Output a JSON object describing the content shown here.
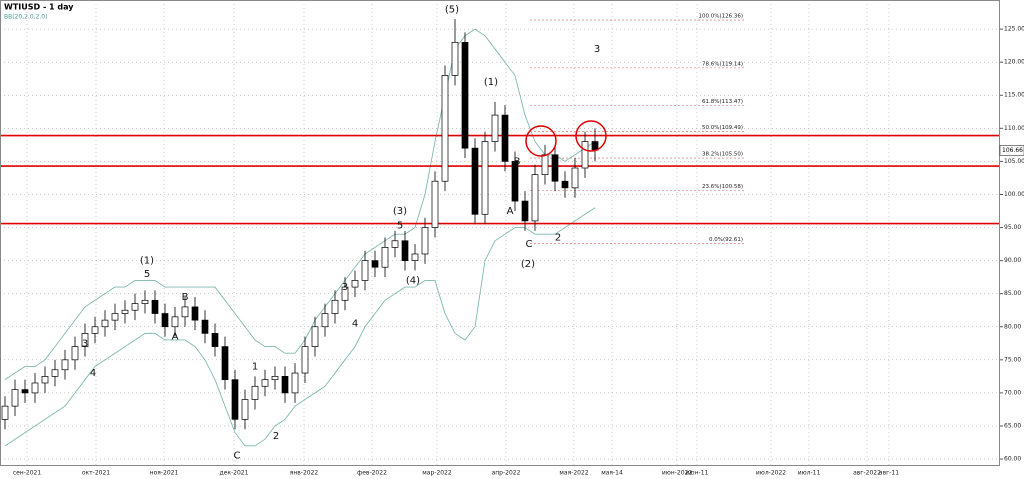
{
  "chart_data": {
    "type": "candlestick",
    "title": "WTIUSD - 1 day",
    "subtitle": "BB(20,2.0,2.0)",
    "open": [
      66,
      68,
      70.5,
      70,
      71.5,
      72.5,
      73.5,
      75,
      77,
      79,
      80,
      81,
      82,
      82.5,
      83.5,
      84,
      82,
      80,
      81.5,
      83,
      81,
      79,
      77,
      72,
      66,
      69,
      71,
      72,
      72.5,
      70,
      73,
      77,
      80,
      82,
      84,
      86,
      87,
      90,
      89,
      92,
      93,
      90,
      91,
      95,
      102,
      118,
      123,
      107,
      97,
      108,
      112,
      105,
      99,
      96,
      103,
      106,
      102,
      101,
      104,
      108
    ],
    "high": [
      69.5,
      72,
      72,
      73,
      74,
      75,
      76.5,
      78.5,
      80.5,
      81.5,
      82.5,
      83.5,
      84,
      85,
      85.5,
      85.5,
      83.5,
      83,
      84.5,
      84.5,
      82.5,
      80.5,
      78.5,
      73.5,
      70.5,
      72.5,
      73.5,
      74,
      74,
      74.5,
      78.5,
      81.5,
      83.5,
      85.5,
      87.5,
      88.5,
      91.5,
      91.5,
      93.5,
      94.5,
      94.5,
      92.5,
      96.5,
      103.5,
      119.5,
      126.5,
      124.5,
      108.5,
      109.5,
      114,
      113.5,
      106.5,
      100.5,
      104.5,
      107.5,
      107.5,
      103.5,
      105.5,
      109.5,
      110
    ],
    "low": [
      64.5,
      66.5,
      68.5,
      68.5,
      70,
      71,
      72,
      73.5,
      75.5,
      77.5,
      78.5,
      79.5,
      80.5,
      81,
      82,
      80.5,
      78.5,
      78.5,
      80,
      79.5,
      77.5,
      75.5,
      70.5,
      64.5,
      64.5,
      67.5,
      69.5,
      70.5,
      68.5,
      68.5,
      71.5,
      75.5,
      78.5,
      80.5,
      82.5,
      84.5,
      85.5,
      87.5,
      87.5,
      90.5,
      88.5,
      88.5,
      89.5,
      93.5,
      100.5,
      116.5,
      105.5,
      95.5,
      95.5,
      106.5,
      103.5,
      97.5,
      94.5,
      94.5,
      101.5,
      100.5,
      99.5,
      99.5,
      102.5,
      105
    ],
    "close": [
      68,
      70.5,
      70,
      71.5,
      72.5,
      73.5,
      75,
      77,
      79,
      80,
      81,
      82,
      82.5,
      83.5,
      84,
      82,
      80,
      81.5,
      83,
      81,
      79,
      77,
      72,
      66,
      69,
      71,
      72,
      72.5,
      70,
      73,
      77,
      80,
      82,
      84,
      86,
      87,
      90,
      89,
      92,
      93,
      90,
      91,
      95,
      102,
      118,
      123,
      107,
      97,
      108,
      112,
      105,
      99,
      96,
      103,
      106,
      102,
      101,
      104,
      108,
      106.7
    ],
    "bands": [
      {
        "values": [
          72,
          73,
          74,
          74,
          75,
          77,
          79,
          81,
          83,
          84,
          85,
          86,
          86,
          87,
          87,
          87,
          86,
          86,
          86,
          86,
          86,
          86,
          84,
          82,
          80,
          78,
          77,
          77,
          76,
          76,
          78,
          81,
          83,
          85,
          87,
          89,
          91,
          92,
          93,
          94,
          94,
          95,
          100,
          108,
          115,
          122,
          124,
          125,
          124,
          122,
          120,
          118,
          112,
          108,
          106,
          106,
          105,
          106,
          107,
          108
        ],
        "color": "#7fb8b0"
      },
      {
        "values": [
          62,
          63,
          64,
          65,
          66,
          67,
          68,
          70,
          72,
          74,
          75,
          76,
          77,
          78,
          79,
          79,
          78,
          78,
          78,
          77,
          75,
          72,
          68,
          64,
          62,
          62,
          63,
          65,
          66,
          68,
          69,
          70,
          71,
          73,
          75,
          77,
          80,
          82,
          84,
          85,
          86,
          86,
          87,
          87,
          82,
          79,
          78,
          80,
          90,
          93,
          94,
          95,
          95,
          94,
          94,
          94,
          95,
          96,
          97,
          98
        ],
        "color": "#7fb8b0"
      }
    ],
    "xlim": [
      -0.5,
      99.5
    ],
    "xticks": [
      {
        "value": 2.2,
        "label": "сен-2021"
      },
      {
        "value": 9.1,
        "label": "окт-2021"
      },
      {
        "value": 15.9,
        "label": "ноя-2021"
      },
      {
        "value": 22.9,
        "label": "дек-2021"
      },
      {
        "value": 29.9,
        "label": "янв-2022"
      },
      {
        "value": 36.7,
        "label": "фев-2022"
      },
      {
        "value": 43.2,
        "label": "мар-2022"
      },
      {
        "value": 50.1,
        "label": "апр-2022"
      },
      {
        "value": 56.9,
        "label": "мая-2022"
      },
      {
        "value": 60.7,
        "label": "мая-14"
      },
      {
        "value": 67.2,
        "label": "июн-2022"
      },
      {
        "value": 69.2,
        "label": "июн-11"
      },
      {
        "value": 76.6,
        "label": "июл-2022"
      },
      {
        "value": 80.4,
        "label": "июл-11"
      },
      {
        "value": 86.2,
        "label": "авг-2022"
      },
      {
        "value": 88.4,
        "label": "авг-11"
      }
    ],
    "ylim": [
      59.1,
      129.4
    ],
    "yticks": [
      {
        "value": 60,
        "label": "60.00"
      },
      {
        "value": 65,
        "label": "65.00"
      },
      {
        "value": 70,
        "label": "70.00"
      },
      {
        "value": 75,
        "label": "75.00"
      },
      {
        "value": 80,
        "label": "80.00"
      },
      {
        "value": 85,
        "label": "85.00"
      },
      {
        "value": 90,
        "label": "90.00"
      },
      {
        "value": 95,
        "label": "95.00"
      },
      {
        "value": 100,
        "label": "100.00"
      },
      {
        "value": 105,
        "label": "105.00"
      },
      {
        "value": 110,
        "label": "110.00"
      },
      {
        "value": 115,
        "label": "115.00"
      },
      {
        "value": 120,
        "label": "120.00"
      },
      {
        "value": 125,
        "label": "125.00"
      }
    ],
    "grid": true,
    "levels": [
      108.9,
      104.3,
      95.6
    ],
    "level_color": "#e00000",
    "last_price": 106.66,
    "fib": {
      "xspan": [
        52.5,
        74.0
      ],
      "color": "#f6d4d8",
      "levels": [
        {
          "value": 126.36,
          "label": "100.0%(126.36)"
        },
        {
          "value": 119.14,
          "label": "78.6%(119.14)"
        },
        {
          "value": 113.47,
          "label": "61.8%(113.47)"
        },
        {
          "value": 109.49,
          "label": "50.0%(109.49)"
        },
        {
          "value": 105.5,
          "label": "38.2%(105.50)"
        },
        {
          "value": 100.58,
          "label": "23.6%(100.58)"
        },
        {
          "value": 92.61,
          "label": "0.0%(92.61)"
        }
      ]
    },
    "annotations": [
      {
        "text": "(5)",
        "x": 44.7,
        "y": 128
      },
      {
        "text": "(1)",
        "x": 48.6,
        "y": 117
      },
      {
        "text": "(2)",
        "x": 52.3,
        "y": 89.5
      },
      {
        "text": "(3)",
        "x": 39.5,
        "y": 97.5
      },
      {
        "text": "5",
        "x": 39.5,
        "y": 95.3
      },
      {
        "text": "(4)",
        "x": 40.8,
        "y": 87
      },
      {
        "text": "(1)",
        "x": 14.2,
        "y": 90
      },
      {
        "text": "5",
        "x": 14.2,
        "y": 88
      },
      {
        "text": "B",
        "x": 18,
        "y": 84.5
      },
      {
        "text": "A",
        "x": 17,
        "y": 78.5
      },
      {
        "text": "C",
        "x": 23.2,
        "y": 60.5
      },
      {
        "text": "1",
        "x": 25,
        "y": 74
      },
      {
        "text": "2",
        "x": 27.1,
        "y": 63.5
      },
      {
        "text": "3",
        "x": 34,
        "y": 86
      },
      {
        "text": "4",
        "x": 35,
        "y": 80.5
      },
      {
        "text": "3",
        "x": 8,
        "y": 77.5
      },
      {
        "text": "4",
        "x": 8.8,
        "y": 73
      },
      {
        "text": "A",
        "x": 50.5,
        "y": 97.5
      },
      {
        "text": "B",
        "x": 51.2,
        "y": 105
      },
      {
        "text": "C",
        "x": 52.4,
        "y": 92.5
      },
      {
        "text": "2",
        "x": 55.3,
        "y": 93.5
      },
      {
        "text": "3",
        "x": 59.2,
        "y": 122
      }
    ]
  }
}
